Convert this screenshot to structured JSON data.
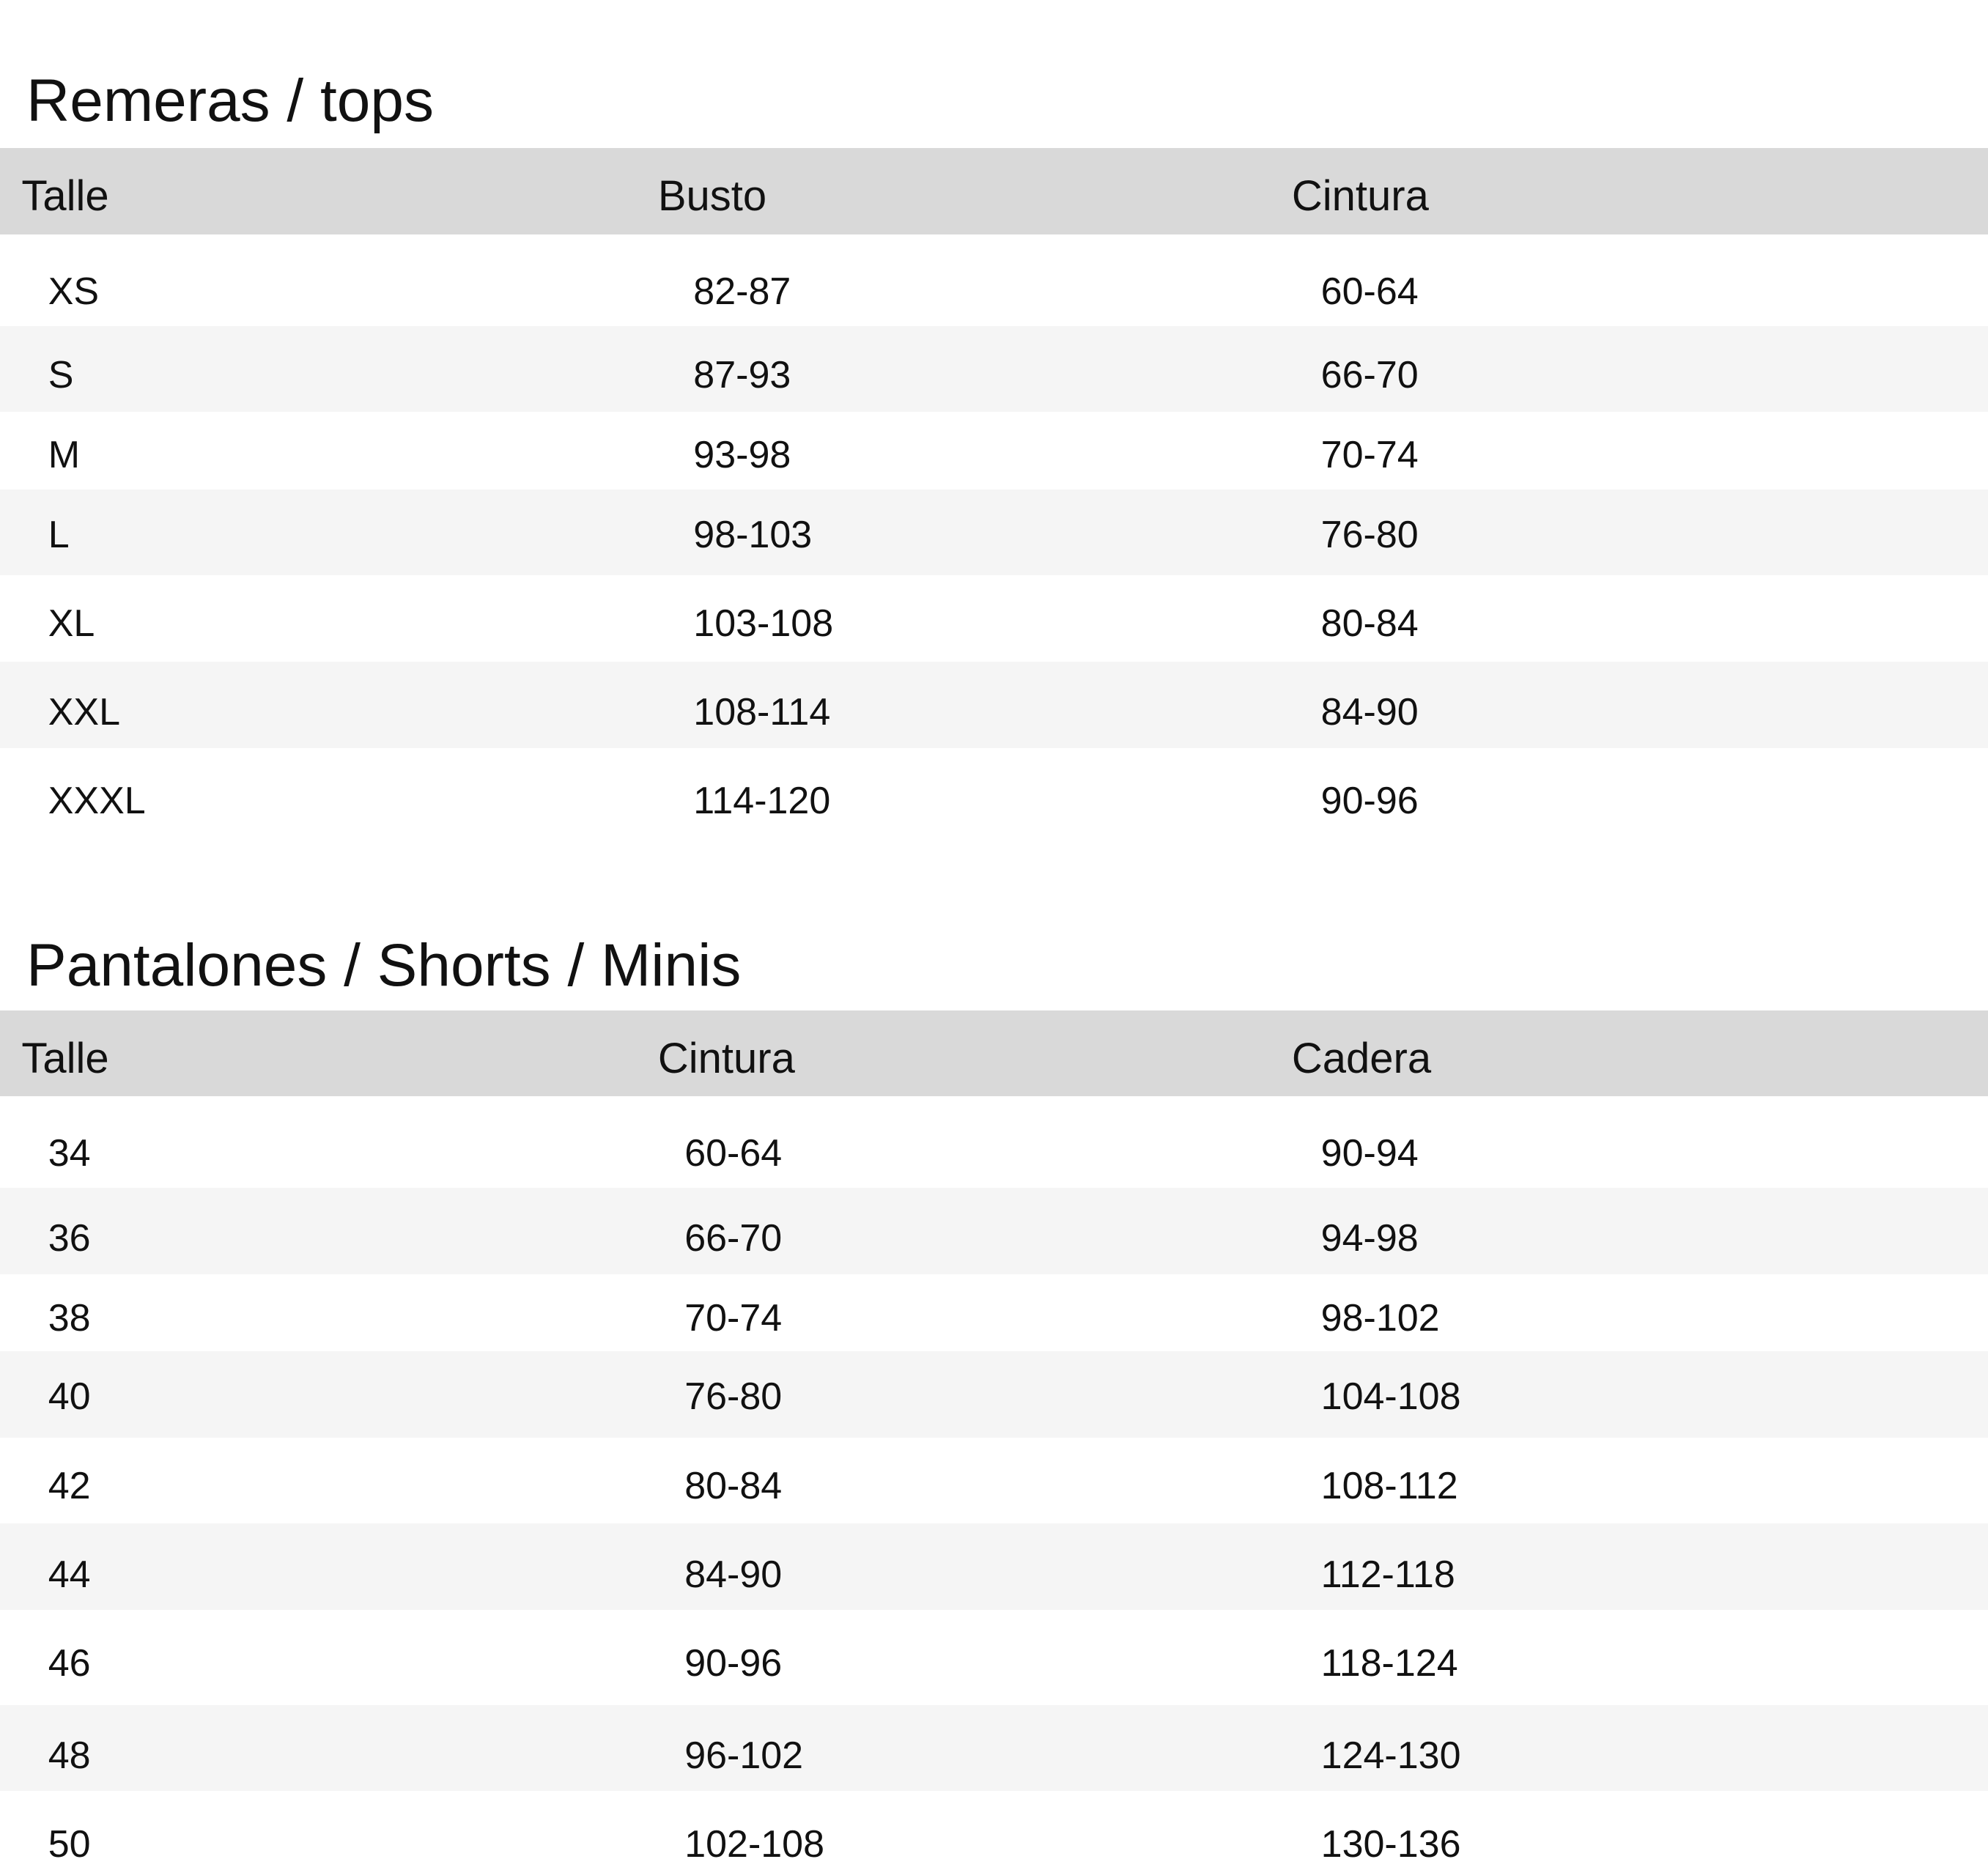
{
  "tables": [
    {
      "title": "Remeras / tops",
      "headers": [
        "Talle",
        "Busto",
        "Cintura"
      ],
      "rows": [
        [
          "XS",
          "82-87",
          "60-64"
        ],
        [
          "S",
          "87-93",
          "66-70"
        ],
        [
          "M",
          "93-98",
          "70-74"
        ],
        [
          "L",
          "98-103",
          "76-80"
        ],
        [
          "XL",
          "103-108",
          "80-84"
        ],
        [
          "XXL",
          "108-114",
          "84-90"
        ],
        [
          "XXXL",
          "114-120",
          "90-96"
        ]
      ]
    },
    {
      "title": "Pantalones / Shorts / Minis",
      "headers": [
        "Talle",
        "Cintura",
        "Cadera"
      ],
      "rows": [
        [
          "34",
          "60-64",
          "90-94"
        ],
        [
          "36",
          "66-70",
          "94-98"
        ],
        [
          "38",
          "70-74",
          "98-102"
        ],
        [
          "40",
          "76-80",
          "104-108"
        ],
        [
          "42",
          "80-84",
          "108-112"
        ],
        [
          "44",
          "84-90",
          "112-118"
        ],
        [
          "46",
          "90-96",
          "118-124"
        ],
        [
          "48",
          "96-102",
          "124-130"
        ],
        [
          "50",
          "102-108",
          "130-136"
        ]
      ]
    }
  ],
  "colors": {
    "header_bg": "#d9d9d9",
    "stripe_bg": "#f5f5f5",
    "text": "#111111"
  }
}
